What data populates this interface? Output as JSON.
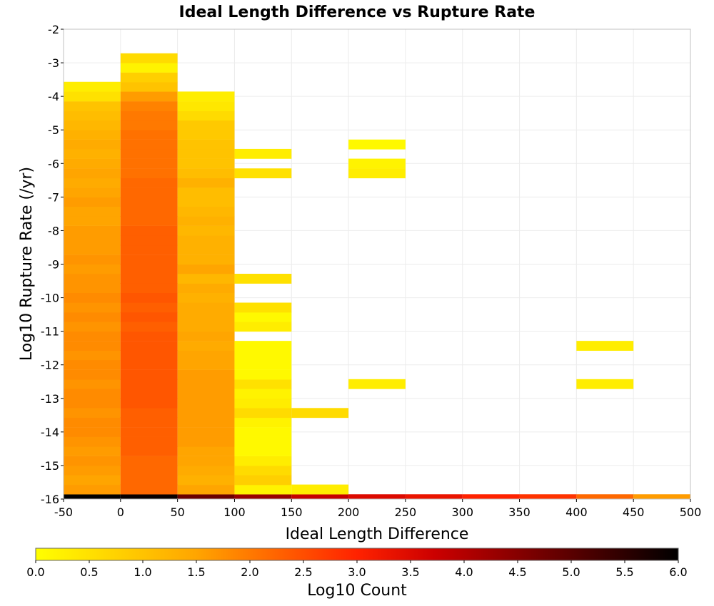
{
  "chart_data": {
    "type": "heatmap",
    "title": "Ideal Length Difference vs Rupture Rate",
    "xlabel": "Ideal Length Difference",
    "ylabel": "Log10 Rupture Rate (/yr)",
    "xlim": [
      -50,
      500
    ],
    "ylim": [
      -16,
      -2
    ],
    "x_ticks": [
      "-50",
      "0",
      "50",
      "100",
      "150",
      "200",
      "250",
      "300",
      "350",
      "400",
      "450",
      "500"
    ],
    "y_ticks": [
      "-2",
      "-3",
      "-4",
      "-5",
      "-6",
      "-7",
      "-8",
      "-9",
      "-10",
      "-11",
      "-12",
      "-13",
      "-14",
      "-15",
      "-16"
    ],
    "x_bin_width": 50,
    "y_bin_height": 0.286,
    "grid": true,
    "colorbar": {
      "label": "Log10 Count",
      "range": [
        0,
        6
      ],
      "ticks": [
        "0.0",
        "0.5",
        "1.0",
        "1.5",
        "2.0",
        "2.5",
        "3.0",
        "3.5",
        "4.0",
        "4.5",
        "5.0",
        "5.5",
        "6.0"
      ],
      "stops": [
        "#ffff00",
        "#ffa500",
        "#ff2200",
        "#cc0000",
        "#000000"
      ]
    },
    "columns": [
      {
        "x": -25,
        "values": [
          [
            -16,
            6.0
          ],
          [
            -15.71,
            1.6
          ],
          [
            -15.43,
            1.5
          ],
          [
            -15.14,
            1.6
          ],
          [
            -14.86,
            1.7
          ],
          [
            -14.57,
            1.6
          ],
          [
            -14.29,
            1.7
          ],
          [
            -14,
            1.8
          ],
          [
            -13.71,
            1.8
          ],
          [
            -13.43,
            1.7
          ],
          [
            -13.14,
            1.8
          ],
          [
            -12.86,
            1.8
          ],
          [
            -12.57,
            1.7
          ],
          [
            -12.29,
            1.8
          ],
          [
            -12,
            1.8
          ],
          [
            -11.71,
            1.7
          ],
          [
            -11.43,
            1.8
          ],
          [
            -11.14,
            1.8
          ],
          [
            -10.86,
            1.7
          ],
          [
            -10.57,
            1.8
          ],
          [
            -10.29,
            1.7
          ],
          [
            -10,
            1.8
          ],
          [
            -9.71,
            1.7
          ],
          [
            -9.43,
            1.7
          ],
          [
            -9.14,
            1.6
          ],
          [
            -8.86,
            1.7
          ],
          [
            -8.57,
            1.6
          ],
          [
            -8.29,
            1.6
          ],
          [
            -8,
            1.6
          ],
          [
            -7.71,
            1.5
          ],
          [
            -7.43,
            1.5
          ],
          [
            -7.14,
            1.6
          ],
          [
            -6.86,
            1.5
          ],
          [
            -6.57,
            1.4
          ],
          [
            -6.29,
            1.5
          ],
          [
            -6,
            1.4
          ],
          [
            -5.71,
            1.3
          ],
          [
            -5.43,
            1.4
          ],
          [
            -5.14,
            1.3
          ],
          [
            -4.86,
            1.2
          ],
          [
            -4.57,
            1.1
          ],
          [
            -4.29,
            1.0
          ],
          [
            -4,
            0.5
          ],
          [
            -3.71,
            0.3
          ]
        ]
      },
      {
        "x": 25,
        "values": [
          [
            -16,
            5.9
          ],
          [
            -15.71,
            2.2
          ],
          [
            -15.43,
            2.2
          ],
          [
            -15.14,
            2.2
          ],
          [
            -14.86,
            2.2
          ],
          [
            -14.57,
            2.3
          ],
          [
            -14.29,
            2.3
          ],
          [
            -14,
            2.3
          ],
          [
            -13.71,
            2.3
          ],
          [
            -13.43,
            2.3
          ],
          [
            -13.14,
            2.4
          ],
          [
            -12.86,
            2.4
          ],
          [
            -12.57,
            2.4
          ],
          [
            -12.29,
            2.4
          ],
          [
            -12,
            2.4
          ],
          [
            -11.71,
            2.4
          ],
          [
            -11.43,
            2.4
          ],
          [
            -11.14,
            2.4
          ],
          [
            -10.86,
            2.3
          ],
          [
            -10.57,
            2.4
          ],
          [
            -10.29,
            2.3
          ],
          [
            -10,
            2.4
          ],
          [
            -9.71,
            2.3
          ],
          [
            -9.43,
            2.3
          ],
          [
            -9.14,
            2.3
          ],
          [
            -8.86,
            2.3
          ],
          [
            -8.57,
            2.3
          ],
          [
            -8.29,
            2.3
          ],
          [
            -8,
            2.3
          ],
          [
            -7.71,
            2.2
          ],
          [
            -7.43,
            2.2
          ],
          [
            -7.14,
            2.2
          ],
          [
            -6.86,
            2.2
          ],
          [
            -6.57,
            2.2
          ],
          [
            -6.29,
            2.1
          ],
          [
            -6,
            2.1
          ],
          [
            -5.71,
            2.1
          ],
          [
            -5.43,
            2.1
          ],
          [
            -5.14,
            2.1
          ],
          [
            -4.86,
            2.0
          ],
          [
            -4.57,
            2.0
          ],
          [
            -4.29,
            1.9
          ],
          [
            -4,
            1.6
          ],
          [
            -3.71,
            1.0
          ],
          [
            -3.43,
            0.8
          ],
          [
            -3.14,
            0.2
          ],
          [
            -2.86,
            0.6
          ]
        ]
      },
      {
        "x": 75,
        "values": [
          [
            -16,
            4.8
          ],
          [
            -15.71,
            1.5
          ],
          [
            -15.43,
            1.3
          ],
          [
            -15.14,
            1.4
          ],
          [
            -14.86,
            1.5
          ],
          [
            -14.57,
            1.5
          ],
          [
            -14.29,
            1.6
          ],
          [
            -14,
            1.6
          ],
          [
            -13.71,
            1.6
          ],
          [
            -13.43,
            1.6
          ],
          [
            -13.14,
            1.6
          ],
          [
            -12.86,
            1.6
          ],
          [
            -12.57,
            1.6
          ],
          [
            -12.29,
            1.6
          ],
          [
            -12,
            1.5
          ],
          [
            -11.71,
            1.5
          ],
          [
            -11.43,
            1.4
          ],
          [
            -11.14,
            1.5
          ],
          [
            -10.86,
            1.4
          ],
          [
            -10.57,
            1.4
          ],
          [
            -10.29,
            1.4
          ],
          [
            -10,
            1.3
          ],
          [
            -9.71,
            1.4
          ],
          [
            -9.43,
            1.2
          ],
          [
            -9.14,
            1.5
          ],
          [
            -8.86,
            1.3
          ],
          [
            -8.57,
            1.3
          ],
          [
            -8.29,
            1.3
          ],
          [
            -8,
            1.2
          ],
          [
            -7.71,
            1.3
          ],
          [
            -7.43,
            1.2
          ],
          [
            -7.14,
            1.1
          ],
          [
            -6.86,
            1.1
          ],
          [
            -6.57,
            1.3
          ],
          [
            -6.29,
            1.1
          ],
          [
            -6,
            1.0
          ],
          [
            -5.71,
            1.0
          ],
          [
            -5.43,
            1.0
          ],
          [
            -5.14,
            0.9
          ],
          [
            -4.86,
            0.9
          ],
          [
            -4.57,
            0.6
          ],
          [
            -4.29,
            0.4
          ],
          [
            -4,
            0.3
          ]
        ]
      },
      {
        "x": 125,
        "values": [
          [
            -16,
            4.3
          ],
          [
            -15.71,
            0.2
          ],
          [
            -15.43,
            0.8
          ],
          [
            -15.14,
            0.6
          ],
          [
            -14.86,
            0.3
          ],
          [
            -14.57,
            0.1
          ],
          [
            -14.29,
            0.1
          ],
          [
            -14,
            0.1
          ],
          [
            -13.71,
            0.2
          ],
          [
            -13.43,
            0.6
          ],
          [
            -13.14,
            0.3
          ],
          [
            -12.86,
            0.2
          ],
          [
            -12.57,
            0.5
          ],
          [
            -12.29,
            0.1
          ],
          [
            -12,
            0.1
          ],
          [
            -11.71,
            0.1
          ],
          [
            -11.43,
            0.1
          ],
          [
            -10.86,
            0.3
          ],
          [
            -10.57,
            0.1
          ],
          [
            -10.29,
            0.5
          ],
          [
            -9.43,
            0.5
          ],
          [
            -6.29,
            0.5
          ],
          [
            -5.71,
            0.3
          ]
        ]
      },
      {
        "x": 175,
        "values": [
          [
            -16,
            3.8
          ],
          [
            -15.71,
            0.3
          ],
          [
            -13.43,
            0.6
          ]
        ]
      },
      {
        "x": 225,
        "values": [
          [
            -16,
            3.5
          ],
          [
            -12.57,
            0.3
          ],
          [
            -6.29,
            0.3
          ],
          [
            -6,
            0.2
          ],
          [
            -5.43,
            0.1
          ]
        ]
      },
      {
        "x": 275,
        "values": [
          [
            -16,
            3.3
          ]
        ]
      },
      {
        "x": 325,
        "values": [
          [
            -16,
            3.0
          ]
        ]
      },
      {
        "x": 375,
        "values": [
          [
            -16,
            2.8
          ]
        ]
      },
      {
        "x": 425,
        "values": [
          [
            -16,
            2.2
          ],
          [
            -12.57,
            0.3
          ],
          [
            -11.43,
            0.3
          ]
        ]
      },
      {
        "x": 475,
        "values": [
          [
            -16,
            1.6
          ]
        ]
      }
    ]
  }
}
